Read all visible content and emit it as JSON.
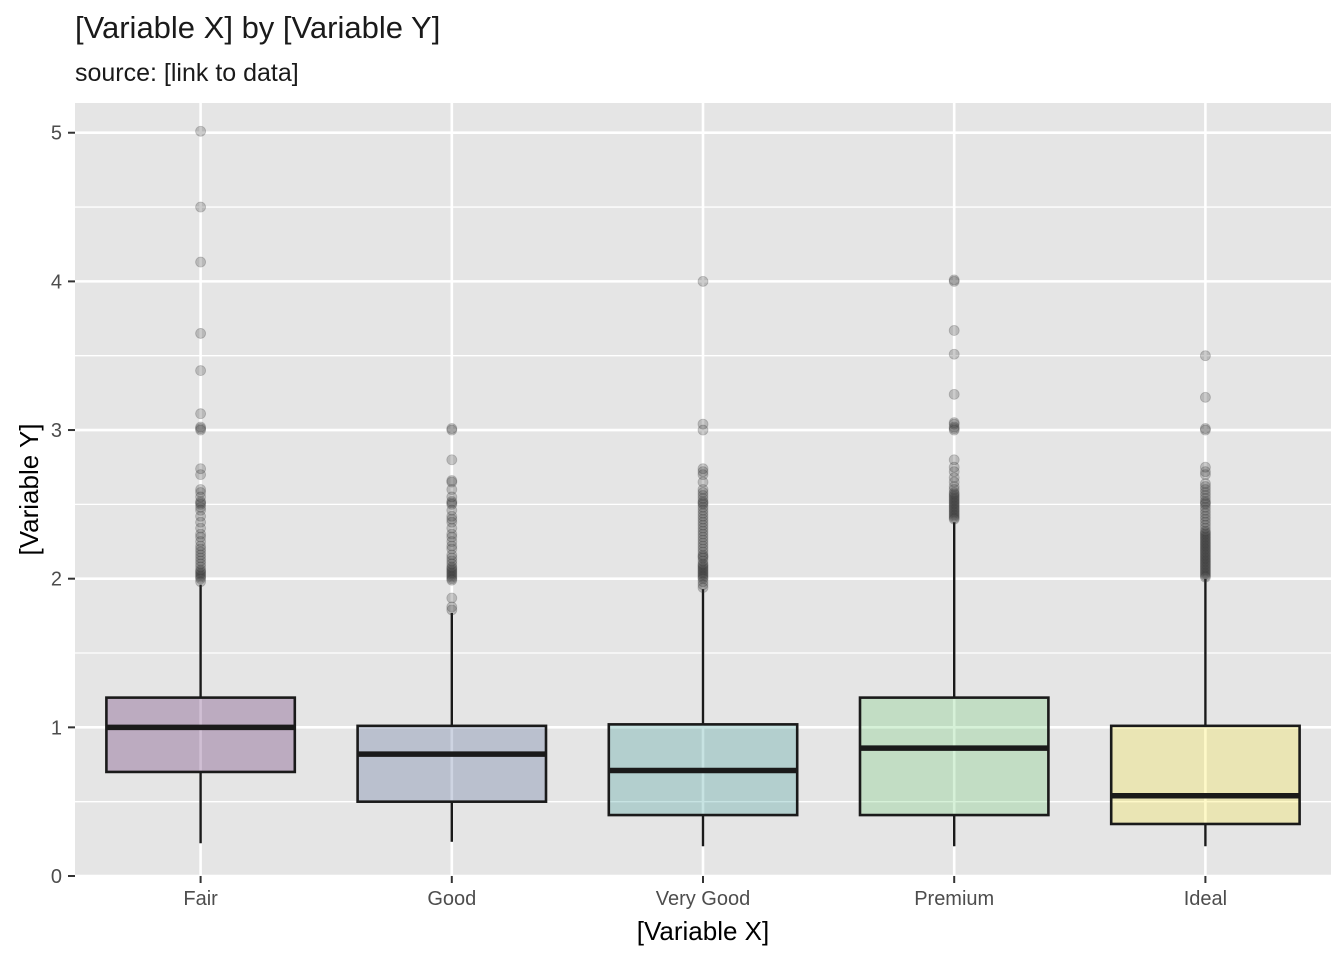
{
  "chart_data": {
    "type": "box",
    "title": "[Variable X] by [Variable Y]",
    "subtitle": "source: [link to data]",
    "xlabel": "[Variable X]",
    "ylabel": "[Variable Y]",
    "ylim": [
      0,
      5.2
    ],
    "yticks": [
      0,
      1,
      2,
      3,
      4,
      5
    ],
    "categories": [
      "Fair",
      "Good",
      "Very Good",
      "Premium",
      "Ideal"
    ],
    "boxes": [
      {
        "category": "Fair",
        "whisker_low": 0.22,
        "q1": 0.7,
        "median": 1.0,
        "q3": 1.2,
        "whisker_high": 1.96,
        "color": "#440154",
        "outliers": [
          1.98,
          2.0,
          2.01,
          2.02,
          2.03,
          2.04,
          2.05,
          2.06,
          2.08,
          2.1,
          2.12,
          2.14,
          2.16,
          2.18,
          2.2,
          2.22,
          2.25,
          2.28,
          2.3,
          2.34,
          2.38,
          2.42,
          2.46,
          2.48,
          2.5,
          2.51,
          2.52,
          2.55,
          2.58,
          2.6,
          2.7,
          2.74,
          3.0,
          3.01,
          3.02,
          3.11,
          3.4,
          3.65,
          4.13,
          4.5,
          5.01
        ]
      },
      {
        "category": "Good",
        "whisker_low": 0.23,
        "q1": 0.5,
        "median": 0.82,
        "q3": 1.01,
        "whisker_high": 1.77,
        "color": "#3b528b",
        "outliers": [
          1.79,
          1.81,
          1.87,
          1.99,
          2.0,
          2.01,
          2.02,
          2.03,
          2.04,
          2.05,
          2.06,
          2.07,
          2.08,
          2.1,
          2.12,
          2.14,
          2.16,
          2.2,
          2.22,
          2.25,
          2.28,
          2.3,
          2.34,
          2.38,
          2.4,
          2.42,
          2.46,
          2.5,
          2.51,
          2.52,
          2.55,
          2.6,
          2.65,
          2.66,
          2.8,
          3.0,
          3.01
        ]
      },
      {
        "category": "Very Good",
        "whisker_low": 0.2,
        "q1": 0.41,
        "median": 0.71,
        "q3": 1.02,
        "whisker_high": 1.93,
        "color": "#21908c",
        "outliers": [
          1.94,
          1.96,
          1.98,
          2.0,
          2.01,
          2.02,
          2.03,
          2.04,
          2.05,
          2.06,
          2.07,
          2.08,
          2.09,
          2.1,
          2.12,
          2.14,
          2.15,
          2.16,
          2.18,
          2.2,
          2.22,
          2.24,
          2.26,
          2.28,
          2.3,
          2.32,
          2.34,
          2.36,
          2.38,
          2.4,
          2.42,
          2.44,
          2.46,
          2.48,
          2.5,
          2.51,
          2.52,
          2.54,
          2.56,
          2.58,
          2.6,
          2.65,
          2.7,
          2.72,
          2.74,
          3.0,
          3.04,
          4.0
        ]
      },
      {
        "category": "Premium",
        "whisker_low": 0.2,
        "q1": 0.41,
        "median": 0.86,
        "q3": 1.2,
        "whisker_high": 2.38,
        "color": "#5dc863",
        "outliers": [
          2.4,
          2.41,
          2.42,
          2.43,
          2.44,
          2.45,
          2.46,
          2.47,
          2.48,
          2.49,
          2.5,
          2.51,
          2.52,
          2.53,
          2.54,
          2.55,
          2.56,
          2.57,
          2.58,
          2.6,
          2.62,
          2.65,
          2.68,
          2.72,
          2.75,
          2.8,
          3.0,
          3.01,
          3.02,
          3.04,
          3.05,
          3.24,
          3.51,
          3.67,
          4.0,
          4.01
        ]
      },
      {
        "category": "Ideal",
        "whisker_low": 0.2,
        "q1": 0.35,
        "median": 0.54,
        "q3": 1.01,
        "whisker_high": 2.0,
        "color": "#fde725",
        "outliers": [
          2.01,
          2.02,
          2.03,
          2.04,
          2.05,
          2.06,
          2.07,
          2.08,
          2.09,
          2.1,
          2.11,
          2.12,
          2.13,
          2.14,
          2.15,
          2.16,
          2.17,
          2.18,
          2.19,
          2.2,
          2.21,
          2.22,
          2.23,
          2.24,
          2.25,
          2.26,
          2.27,
          2.28,
          2.29,
          2.3,
          2.31,
          2.32,
          2.34,
          2.36,
          2.38,
          2.4,
          2.42,
          2.44,
          2.46,
          2.48,
          2.5,
          2.51,
          2.52,
          2.54,
          2.56,
          2.58,
          2.6,
          2.62,
          2.64,
          2.7,
          2.72,
          2.75,
          3.0,
          3.01,
          3.22,
          3.5
        ]
      }
    ],
    "box_alpha": 0.25,
    "outlier_color": "#333333",
    "panel_background": "#e5e5e5",
    "grid_color": "#ffffff",
    "grid": true
  }
}
